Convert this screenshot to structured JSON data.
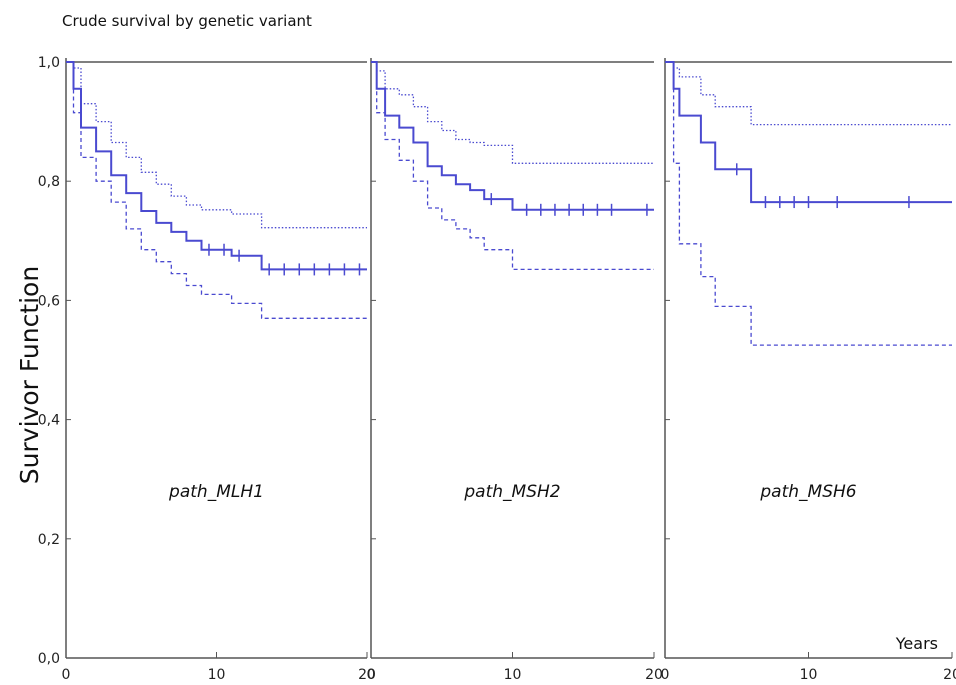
{
  "chart_data": {
    "type": "line",
    "title": "Crude survival by genetic variant",
    "ylabel": "Survivor Function",
    "xlabel": "Years",
    "ylim": [
      0,
      1
    ],
    "yticks": [
      "0,0",
      "0,2",
      "0,4",
      "0,6",
      "0,8",
      "1,0"
    ],
    "line_color": "#4a4ad0",
    "grid": false,
    "panels": [
      {
        "label": "path_MLH1",
        "xticks": [
          "0",
          "10",
          "20"
        ],
        "xlim": [
          0,
          20
        ],
        "estimate": [
          [
            0,
            1
          ],
          [
            0.5,
            0.955
          ],
          [
            1,
            0.89
          ],
          [
            2,
            0.85
          ],
          [
            3,
            0.81
          ],
          [
            4,
            0.78
          ],
          [
            5,
            0.75
          ],
          [
            6,
            0.73
          ],
          [
            7,
            0.715
          ],
          [
            8,
            0.7
          ],
          [
            9,
            0.685
          ],
          [
            11,
            0.675
          ],
          [
            13,
            0.652
          ],
          [
            20,
            0.652
          ]
        ],
        "upper": [
          [
            0,
            1
          ],
          [
            0.5,
            0.99
          ],
          [
            1,
            0.93
          ],
          [
            2,
            0.9
          ],
          [
            3,
            0.865
          ],
          [
            4,
            0.84
          ],
          [
            5,
            0.815
          ],
          [
            6,
            0.795
          ],
          [
            7,
            0.775
          ],
          [
            8,
            0.76
          ],
          [
            9,
            0.752
          ],
          [
            11,
            0.745
          ],
          [
            13,
            0.722
          ],
          [
            20,
            0.722
          ]
        ],
        "lower": [
          [
            0,
            1
          ],
          [
            0.5,
            0.915
          ],
          [
            1,
            0.84
          ],
          [
            2,
            0.8
          ],
          [
            3,
            0.765
          ],
          [
            4,
            0.72
          ],
          [
            5,
            0.685
          ],
          [
            6,
            0.665
          ],
          [
            7,
            0.645
          ],
          [
            8,
            0.625
          ],
          [
            9,
            0.61
          ],
          [
            11,
            0.595
          ],
          [
            13,
            0.57
          ],
          [
            20,
            0.57
          ]
        ],
        "censored": [
          9.5,
          10.5,
          11.5,
          13.5,
          14.5,
          15.5,
          16.5,
          17.5,
          18.5,
          19.5
        ]
      },
      {
        "label": "path_MSH2",
        "xticks": [
          "0",
          "10",
          "20"
        ],
        "xlim": [
          0,
          20
        ],
        "estimate": [
          [
            0,
            1
          ],
          [
            0.4,
            0.955
          ],
          [
            1,
            0.91
          ],
          [
            2,
            0.89
          ],
          [
            3,
            0.865
          ],
          [
            4,
            0.825
          ],
          [
            5,
            0.81
          ],
          [
            6,
            0.795
          ],
          [
            7,
            0.785
          ],
          [
            8,
            0.77
          ],
          [
            10,
            0.752
          ],
          [
            20,
            0.752
          ]
        ],
        "upper": [
          [
            0,
            1
          ],
          [
            0.4,
            0.985
          ],
          [
            1,
            0.955
          ],
          [
            2,
            0.945
          ],
          [
            3,
            0.925
          ],
          [
            4,
            0.9
          ],
          [
            5,
            0.885
          ],
          [
            6,
            0.87
          ],
          [
            7,
            0.865
          ],
          [
            8,
            0.86
          ],
          [
            10,
            0.83
          ],
          [
            20,
            0.83
          ]
        ],
        "lower": [
          [
            0,
            1
          ],
          [
            0.4,
            0.915
          ],
          [
            1,
            0.87
          ],
          [
            2,
            0.835
          ],
          [
            3,
            0.8
          ],
          [
            4,
            0.755
          ],
          [
            5,
            0.735
          ],
          [
            6,
            0.72
          ],
          [
            7,
            0.705
          ],
          [
            8,
            0.685
          ],
          [
            10,
            0.652
          ],
          [
            20,
            0.652
          ]
        ],
        "censored": [
          8.5,
          11,
          12,
          13,
          14,
          15,
          16,
          17,
          19.5
        ]
      },
      {
        "label": "path_MSH6",
        "xticks": [
          "0",
          "10",
          "20"
        ],
        "xlim": [
          0,
          20
        ],
        "estimate": [
          [
            0,
            1
          ],
          [
            0.6,
            0.955
          ],
          [
            1,
            0.91
          ],
          [
            2.5,
            0.865
          ],
          [
            3.5,
            0.82
          ],
          [
            6,
            0.765
          ],
          [
            20,
            0.765
          ]
        ],
        "upper": [
          [
            0,
            1
          ],
          [
            0.6,
            0.99
          ],
          [
            1,
            0.975
          ],
          [
            2.5,
            0.945
          ],
          [
            3.5,
            0.925
          ],
          [
            6,
            0.895
          ],
          [
            20,
            0.895
          ]
        ],
        "lower": [
          [
            0,
            1
          ],
          [
            0.6,
            0.83
          ],
          [
            1,
            0.695
          ],
          [
            2.5,
            0.64
          ],
          [
            3.5,
            0.59
          ],
          [
            6,
            0.525
          ],
          [
            20,
            0.525
          ]
        ],
        "censored": [
          5,
          7,
          8,
          9,
          10,
          12,
          17
        ]
      }
    ]
  }
}
